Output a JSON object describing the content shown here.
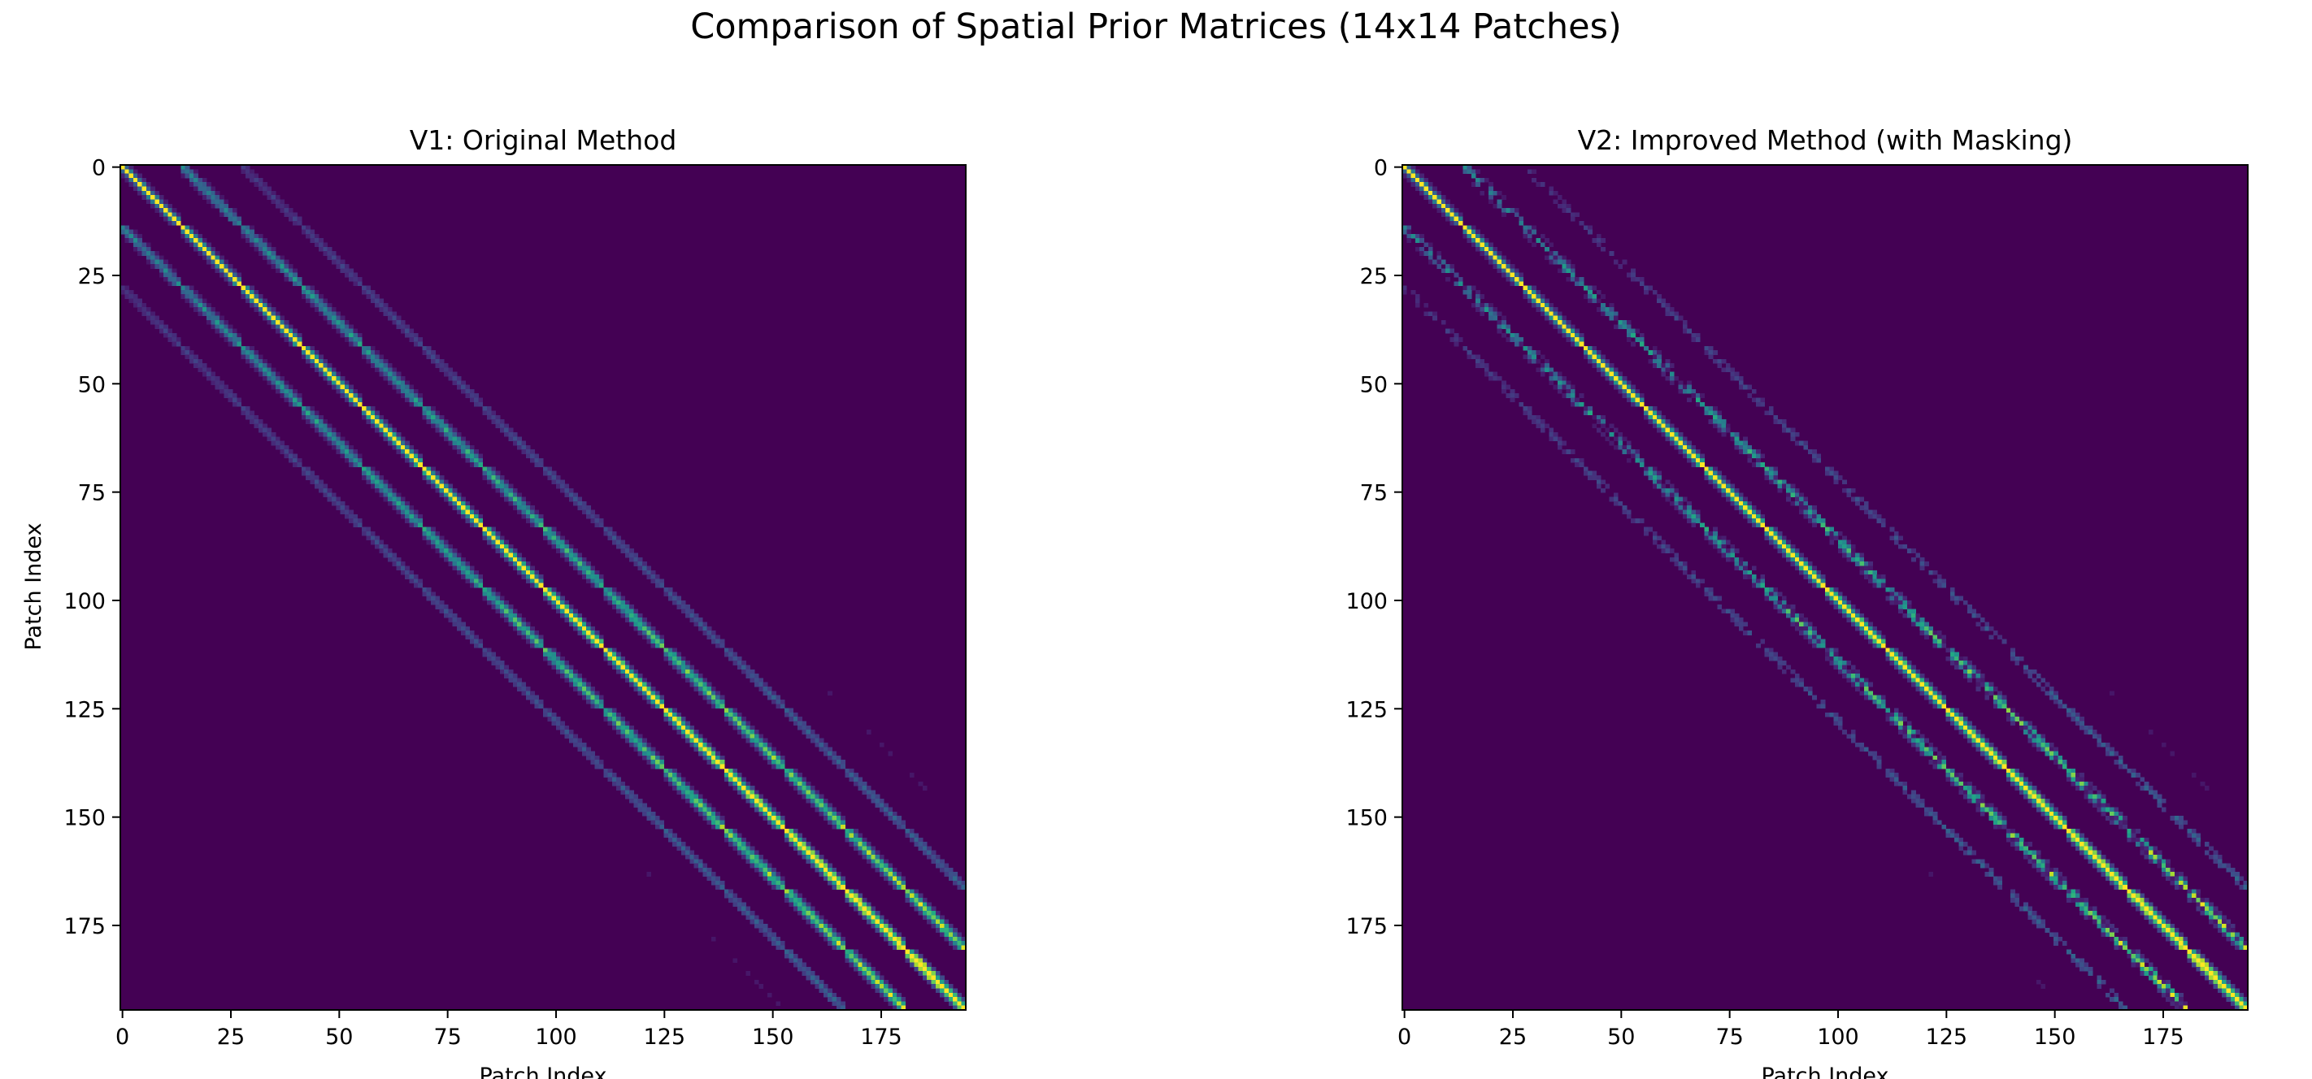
{
  "figure": {
    "title": "Comparison of Spatial Prior Matrices (14x14 Patches)"
  },
  "colors": {
    "colormap": "viridis",
    "background_low": "#440154",
    "mid": "#21918c",
    "high": "#fde725"
  },
  "chart_data": [
    {
      "type": "heatmap",
      "title": "V1: Original Method",
      "xlabel": "Patch Index",
      "ylabel": "Patch Index",
      "colormap": "viridis",
      "matrix_size": 196,
      "grid_side": 14,
      "xlim": [
        0,
        195
      ],
      "ylim": [
        195,
        0
      ],
      "xticks": [
        0,
        25,
        50,
        75,
        100,
        125,
        150,
        175
      ],
      "yticks": [
        0,
        25,
        50,
        75,
        100,
        125,
        150,
        175
      ],
      "xtick_labels": [
        "0",
        "25",
        "50",
        "75",
        "100",
        "125",
        "150",
        "175"
      ],
      "ytick_labels": [
        "0",
        "25",
        "50",
        "75",
        "100",
        "125",
        "150",
        "175"
      ],
      "value_range": [
        0,
        1
      ],
      "pattern": "block-banded spatial prior: entry (i,j) decays with the 2-D distance between patch i and patch j on the 14x14 grid; maximum on the main diagonal"
    },
    {
      "type": "heatmap",
      "title": "V2: Improved Method (with Masking)",
      "xlabel": "Patch Index",
      "ylabel": "",
      "colormap": "viridis",
      "matrix_size": 196,
      "grid_side": 14,
      "xlim": [
        0,
        195
      ],
      "ylim": [
        195,
        0
      ],
      "xticks": [
        0,
        25,
        50,
        75,
        100,
        125,
        150,
        175
      ],
      "yticks": [
        0,
        25,
        50,
        75,
        100,
        125,
        150,
        175
      ],
      "xtick_labels": [
        "0",
        "25",
        "50",
        "75",
        "100",
        "125",
        "150",
        "175"
      ],
      "ytick_labels": [
        "0",
        "25",
        "50",
        "75",
        "100",
        "125",
        "150",
        "175"
      ],
      "value_range": [
        0,
        1
      ],
      "pattern": "same block-banded spatial prior with a mask applied: off-diagonal blocks are sparser, many entries set to the minimum value"
    }
  ]
}
